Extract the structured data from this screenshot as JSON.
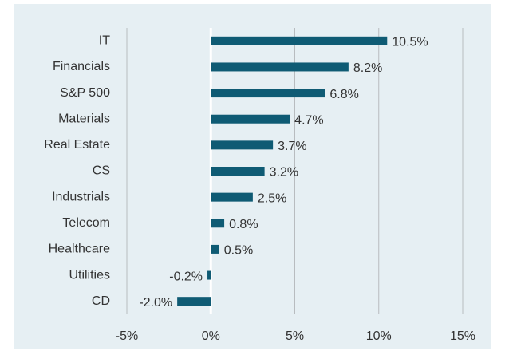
{
  "chart_data": {
    "type": "bar",
    "orientation": "horizontal",
    "categories": [
      "IT",
      "Financials",
      "S&P 500",
      "Materials",
      "Real Estate",
      "CS",
      "Industrials",
      "Telecom",
      "Healthcare",
      "Utilities",
      "CD"
    ],
    "values": [
      10.5,
      8.2,
      6.8,
      4.7,
      3.7,
      3.2,
      2.5,
      0.8,
      0.5,
      -0.2,
      -2.0
    ],
    "value_labels": [
      "10.5%",
      "8.2%",
      "6.8%",
      "4.7%",
      "3.7%",
      "3.2%",
      "2.5%",
      "0.8%",
      "0.5%",
      "-0.2%",
      "-2.0%"
    ],
    "color": "#0f5b74",
    "xlim": [
      -5,
      15
    ],
    "xticks": [
      {
        "value": -5,
        "label": "-5%"
      },
      {
        "value": 0,
        "label": "0%"
      },
      {
        "value": 5,
        "label": "5%"
      },
      {
        "value": 10,
        "label": "10%"
      },
      {
        "value": 15,
        "label": "15%"
      }
    ],
    "grid": true
  }
}
